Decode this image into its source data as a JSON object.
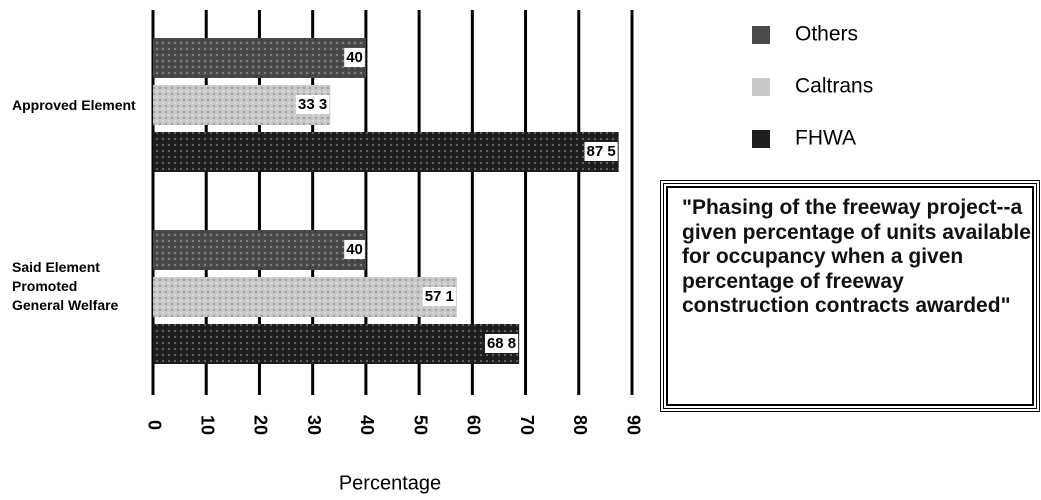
{
  "chart_data": {
    "type": "bar",
    "orientation": "horizontal",
    "categories": [
      "Approved Element",
      "Said Element Promoted General Welfare"
    ],
    "series": [
      {
        "name": "Others",
        "color": "#4a4a4a",
        "values": [
          40,
          40
        ],
        "value_labels": [
          "40",
          "40"
        ]
      },
      {
        "name": "Caltrans",
        "color": "#c8c8c8",
        "values": [
          33.3,
          57.1
        ],
        "value_labels": [
          "33 3",
          "57 1"
        ]
      },
      {
        "name": "FHWA",
        "color": "#1e1e1e",
        "values": [
          87.5,
          68.8
        ],
        "value_labels": [
          "87 5",
          "68 8"
        ]
      }
    ],
    "xlabel": "Percentage",
    "xlim": [
      0,
      90
    ],
    "xticks": [
      0,
      10,
      20,
      30,
      40,
      50,
      60,
      70,
      80,
      90
    ],
    "grid": true,
    "legend": "upper right",
    "annotation": "\"Phasing of the freeway project--a given percentage of units available for occupancy when a given percentage of freeway construction contracts awarded\""
  }
}
